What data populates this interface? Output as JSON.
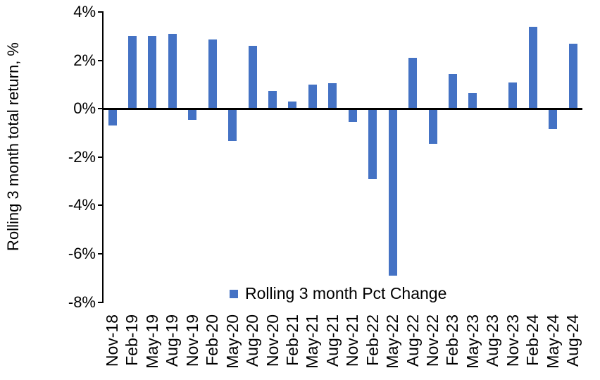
{
  "chart_data": {
    "type": "bar",
    "title": "",
    "ylabel": "Rolling 3 month total return, %",
    "xlabel": "",
    "legend": {
      "label": "Rolling 3 month Pct Change",
      "position": "bottom",
      "swatch_color": "#4472C4"
    },
    "grid": false,
    "ylim": [
      -8,
      4
    ],
    "ytick_step_pct": 2,
    "yticks": [
      "4%",
      "2%",
      "0%",
      "-2%",
      "-4%",
      "-6%",
      "-8%"
    ],
    "ytick_values": [
      4,
      2,
      0,
      -2,
      -4,
      -6,
      -8
    ],
    "categories": [
      "Nov-18",
      "Feb-19",
      "May-19",
      "Aug-19",
      "Nov-19",
      "Feb-20",
      "May-20",
      "Aug-20",
      "Nov-20",
      "Feb-21",
      "May-21",
      "Aug-21",
      "Nov-21",
      "Feb-22",
      "May-22",
      "Aug-22",
      "Nov-22",
      "Feb-23",
      "May-23",
      "Aug-23",
      "Nov-23",
      "Feb-24",
      "May-24",
      "Aug-24"
    ],
    "values": [
      -0.7,
      3.0,
      3.0,
      3.1,
      -0.45,
      2.85,
      -1.35,
      2.6,
      0.75,
      0.3,
      1.0,
      1.05,
      -0.55,
      -2.9,
      -6.9,
      2.1,
      -1.45,
      1.45,
      0.65,
      0.0,
      1.1,
      3.4,
      -0.85,
      2.7
    ],
    "bar_color": "#4472C4",
    "axis_color": "#000000",
    "text_color": "#000000"
  }
}
